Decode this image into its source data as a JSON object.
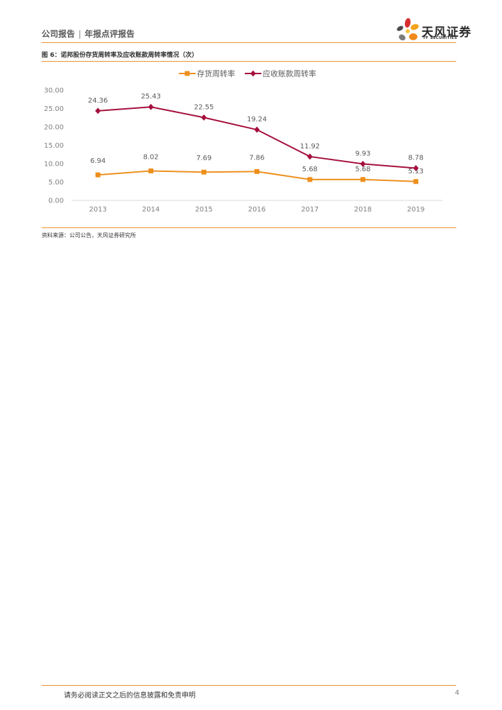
{
  "header": {
    "report_type": "公司报告",
    "separator": "|",
    "report_subtype": "年报点评报告"
  },
  "logo": {
    "name_cn": "天风证券",
    "name_en": "TF SECURITIES"
  },
  "figure": {
    "title": "图 6：诺邦股份存货周转率及应收账款周转率情况（次）",
    "source": "资料来源：公司公告，天风证券研究所"
  },
  "chart_data": {
    "type": "line",
    "title": "",
    "xlabel": "",
    "ylabel": "",
    "categories": [
      "2013",
      "2014",
      "2015",
      "2016",
      "2017",
      "2018",
      "2019"
    ],
    "y_ticks": [
      "0.00",
      "5.00",
      "10.00",
      "15.00",
      "20.00",
      "25.00",
      "30.00"
    ],
    "ylim": [
      0,
      30
    ],
    "grid": false,
    "legend_position": "top-center",
    "series": [
      {
        "name": "存货周转率",
        "marker": "square",
        "color": "#ee8f1c",
        "values": [
          6.94,
          8.02,
          7.69,
          7.86,
          5.68,
          5.68,
          5.13
        ],
        "labels": [
          "6.94",
          "8.02",
          "7.69",
          "7.86",
          "5.68",
          "5.68",
          "5.13"
        ]
      },
      {
        "name": "应收账款周转率",
        "marker": "diamond",
        "color": "#a50f3c",
        "values": [
          24.36,
          25.43,
          22.55,
          19.24,
          11.92,
          9.93,
          8.78
        ],
        "labels": [
          "24.36",
          "25.43",
          "22.55",
          "19.24",
          "11.92",
          "9.93",
          "8.78"
        ]
      }
    ]
  },
  "footer": {
    "disclaimer": "请务必阅读正文之后的信息披露和免责申明",
    "page_number": "4"
  }
}
